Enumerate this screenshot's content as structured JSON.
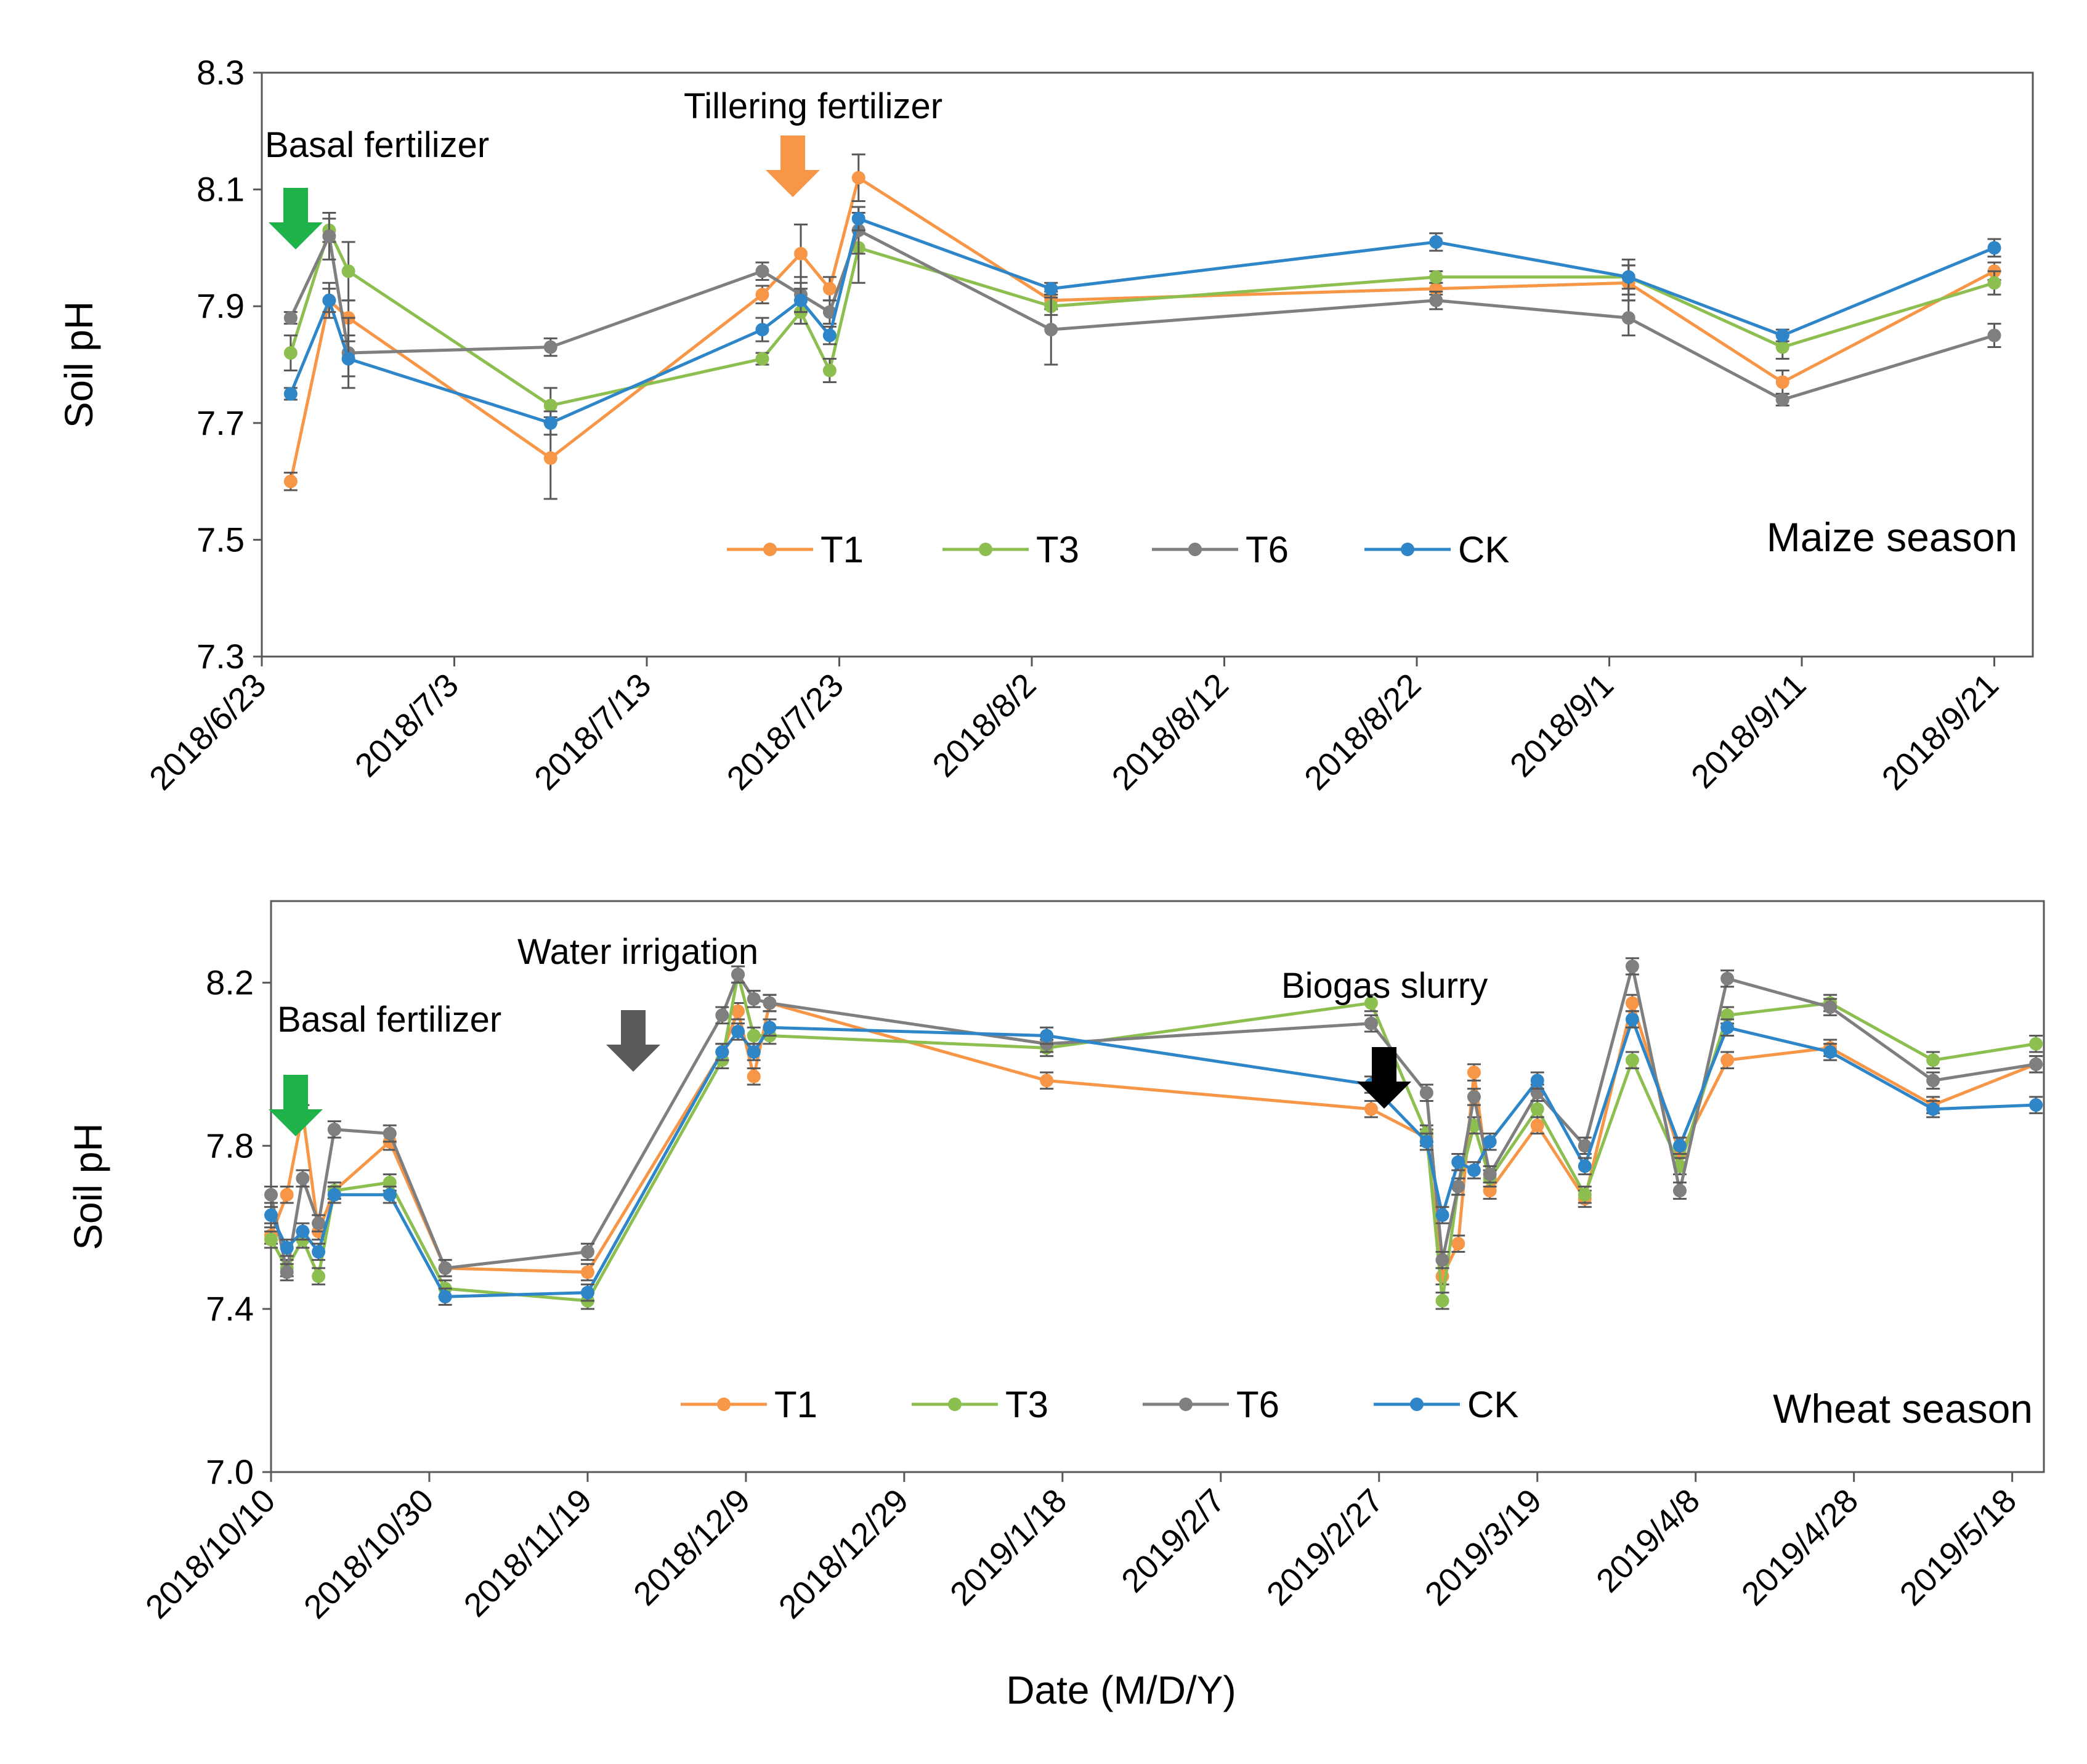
{
  "figure": {
    "xlabel": "Date (M/D/Y)"
  },
  "colors": {
    "T1": "#F79646",
    "T3": "#8CBF4F",
    "T6": "#7F7F7F",
    "CK": "#2E86C8",
    "arrow_green": "#1FB24A",
    "arrow_orange": "#F79646",
    "arrow_gray": "#595959",
    "arrow_black": "#000000"
  },
  "chart_data": [
    {
      "type": "line",
      "panel": "maize",
      "title": "",
      "season_label": "Maize season",
      "ylabel": "Soil pH",
      "xlabel": "",
      "ylim": [
        7.3,
        8.3
      ],
      "yticks": [
        "7.3",
        "7.5",
        "7.7",
        "7.9",
        "8.1",
        "8.3"
      ],
      "xticks": [
        "2018/6/23",
        "2018/7/3",
        "2018/7/13",
        "2018/7/23",
        "2018/8/2",
        "2018/8/12",
        "2018/8/22",
        "2018/9/1",
        "2018/9/11",
        "2018/9/21"
      ],
      "x_days": [
        1.5,
        3.5,
        4.5,
        15,
        26,
        28,
        29.5,
        31,
        41,
        61,
        71,
        79,
        90
      ],
      "legend": [
        "T1",
        "T3",
        "T6",
        "CK"
      ],
      "legend_position": "bottom-center",
      "series": [
        {
          "name": "T1",
          "values": [
            7.6,
            7.91,
            7.88,
            7.64,
            7.92,
            7.99,
            7.93,
            8.12,
            7.91,
            7.93,
            7.94,
            7.77,
            7.96
          ],
          "errors": [
            0.015,
            0.03,
            0.03,
            0.07,
            0.015,
            0.05,
            0.02,
            0.04,
            0.015,
            0.01,
            0.03,
            0.02,
            0.015
          ]
        },
        {
          "name": "T3",
          "values": [
            7.82,
            8.03,
            7.96,
            7.73,
            7.81,
            7.89,
            7.79,
            8.0,
            7.9,
            7.95,
            7.95,
            7.83,
            7.94
          ],
          "errors": [
            0.03,
            0.02,
            0.05,
            0.03,
            0.01,
            0.02,
            0.02,
            0.06,
            0.015,
            0.01,
            0.02,
            0.02,
            0.02
          ]
        },
        {
          "name": "T6",
          "values": [
            7.88,
            8.02,
            7.82,
            7.83,
            7.96,
            7.92,
            7.89,
            8.03,
            7.86,
            7.91,
            7.88,
            7.74,
            7.85
          ],
          "errors": [
            0.01,
            0.04,
            0.06,
            0.015,
            0.015,
            0.03,
            0.02,
            0.04,
            0.06,
            0.015,
            0.03,
            0.01,
            0.02
          ]
        },
        {
          "name": "CK",
          "values": [
            7.75,
            7.91,
            7.81,
            7.7,
            7.86,
            7.91,
            7.85,
            8.05,
            7.93,
            8.01,
            7.95,
            7.85,
            8.0
          ],
          "errors": [
            0.01,
            0.02,
            0.03,
            0.02,
            0.02,
            0.02,
            0.015,
            0.02,
            0.01,
            0.015,
            0.03,
            0.01,
            0.015
          ]
        }
      ],
      "annotations": [
        {
          "text": "Basal fertilizer",
          "x_day": 1.8,
          "arrow": "arrow_green"
        },
        {
          "text": "Tillering  fertilizer",
          "x_day": 28.5,
          "arrow": "arrow_orange"
        }
      ]
    },
    {
      "type": "line",
      "panel": "wheat",
      "title": "",
      "season_label": "Wheat season",
      "ylabel": "Soil pH",
      "xlabel": "Date (M/D/Y)",
      "ylim": [
        7.0,
        8.4
      ],
      "yticks": [
        "7.0",
        "7.4",
        "7.8",
        "8.2"
      ],
      "xticks": [
        "2018/10/10",
        "2018/10/30",
        "2018/11/19",
        "2018/12/9",
        "2018/12/29",
        "2019/1/18",
        "2019/2/7",
        "2019/2/27",
        "2019/3/19",
        "2019/4/8",
        "2019/4/28",
        "2019/5/18"
      ],
      "x_days": [
        0,
        2,
        4,
        6,
        8,
        15,
        22,
        40,
        57,
        59,
        61,
        63,
        98,
        139,
        146,
        148,
        150,
        152,
        154,
        160,
        166,
        172,
        178,
        184,
        197,
        210,
        223
      ],
      "legend": [
        "T1",
        "T3",
        "T6",
        "CK"
      ],
      "legend_position": "bottom-center",
      "series": [
        {
          "name": "T1",
          "values": [
            7.58,
            7.68,
            7.88,
            7.59,
            7.69,
            7.81,
            7.5,
            7.49,
            8.03,
            8.13,
            7.97,
            8.15,
            7.96,
            7.89,
            7.82,
            7.48,
            7.56,
            7.98,
            7.69,
            7.85,
            7.67,
            8.15,
            7.78,
            8.01,
            8.04,
            7.9,
            8.0
          ],
          "errors": [
            0.02,
            0.02,
            0.02,
            0.02,
            0.02,
            0.02,
            0.02,
            0.02,
            0.02,
            0.02,
            0.02,
            0.02,
            0.02,
            0.02,
            0.02,
            0.02,
            0.02,
            0.02,
            0.02,
            0.02,
            0.02,
            0.02,
            0.02,
            0.02,
            0.02,
            0.02,
            0.02
          ]
        },
        {
          "name": "T3",
          "values": [
            7.57,
            7.5,
            7.57,
            7.48,
            7.69,
            7.71,
            7.45,
            7.42,
            8.01,
            8.22,
            8.07,
            8.07,
            8.04,
            8.15,
            7.83,
            7.42,
            7.7,
            7.85,
            7.72,
            7.89,
            7.68,
            8.01,
            7.75,
            8.12,
            8.15,
            8.01,
            8.05
          ],
          "errors": [
            0.02,
            0.02,
            0.02,
            0.02,
            0.02,
            0.02,
            0.02,
            0.02,
            0.02,
            0.02,
            0.02,
            0.02,
            0.02,
            0.02,
            0.02,
            0.02,
            0.02,
            0.02,
            0.02,
            0.02,
            0.02,
            0.02,
            0.02,
            0.02,
            0.02,
            0.02,
            0.02
          ]
        },
        {
          "name": "T6",
          "values": [
            7.68,
            7.49,
            7.72,
            7.61,
            7.84,
            7.83,
            7.5,
            7.54,
            8.12,
            8.22,
            8.16,
            8.15,
            8.05,
            8.1,
            7.93,
            7.52,
            7.7,
            7.92,
            7.73,
            7.93,
            7.8,
            8.24,
            7.69,
            8.21,
            8.14,
            7.96,
            8.0
          ],
          "errors": [
            0.02,
            0.02,
            0.02,
            0.02,
            0.02,
            0.02,
            0.02,
            0.02,
            0.02,
            0.02,
            0.02,
            0.02,
            0.02,
            0.02,
            0.02,
            0.02,
            0.02,
            0.02,
            0.02,
            0.02,
            0.02,
            0.02,
            0.02,
            0.02,
            0.02,
            0.02,
            0.02
          ]
        },
        {
          "name": "CK",
          "values": [
            7.63,
            7.55,
            7.59,
            7.54,
            7.68,
            7.68,
            7.43,
            7.44,
            8.03,
            8.08,
            8.03,
            8.09,
            8.07,
            7.95,
            7.81,
            7.63,
            7.76,
            7.74,
            7.81,
            7.96,
            7.75,
            8.11,
            7.8,
            8.09,
            8.03,
            7.89,
            7.9
          ],
          "errors": [
            0.02,
            0.02,
            0.02,
            0.02,
            0.02,
            0.02,
            0.02,
            0.02,
            0.02,
            0.02,
            0.02,
            0.02,
            0.02,
            0.02,
            0.02,
            0.02,
            0.02,
            0.02,
            0.02,
            0.02,
            0.02,
            0.02,
            0.02,
            0.02,
            0.02,
            0.02,
            0.02
          ]
        }
      ],
      "annotations": [
        {
          "text": "Basal fertilizer",
          "x_day": 3,
          "arrow": "arrow_green"
        },
        {
          "text": "Water irrigation",
          "x_day": 47,
          "arrow": "arrow_gray"
        },
        {
          "text": "Biogas slurry",
          "x_day": 144,
          "arrow": "arrow_black"
        }
      ]
    }
  ]
}
